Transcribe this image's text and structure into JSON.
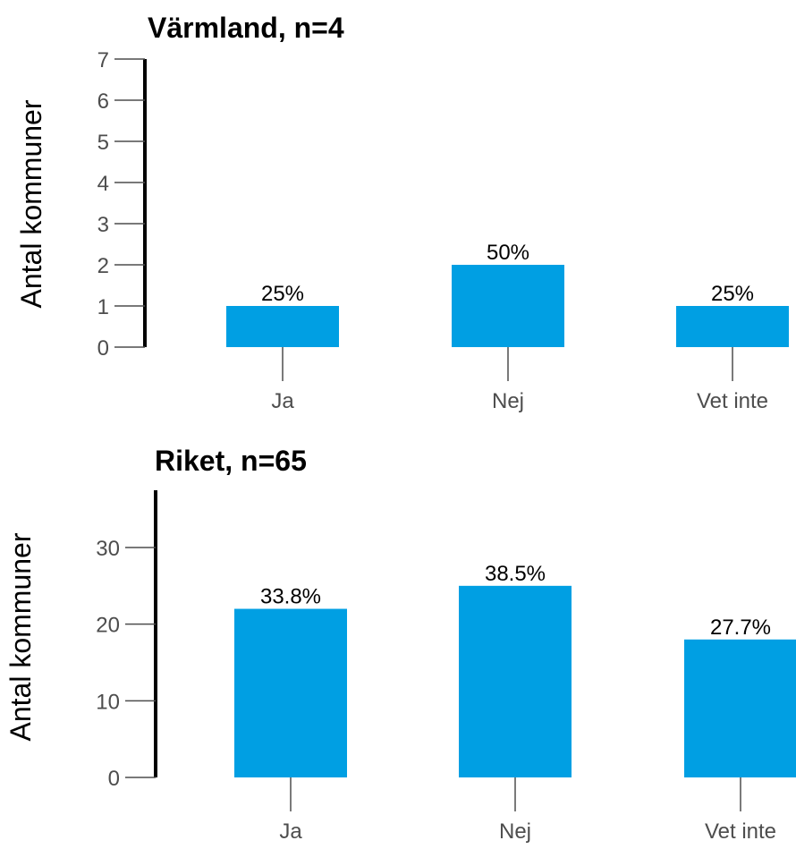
{
  "chart_data": [
    {
      "type": "bar",
      "title": "Värmland, n=4",
      "xlabel": "",
      "ylabel": "Antal kommuner",
      "categories": [
        "Ja",
        "Nej",
        "Vet inte"
      ],
      "values": [
        1,
        2,
        1
      ],
      "data_labels": [
        "25%",
        "50%",
        "25%"
      ],
      "ylim": [
        0,
        7
      ],
      "yticks": [
        0,
        1,
        2,
        3,
        4,
        5,
        6,
        7
      ],
      "grid": false,
      "bar_color": "#009fe3"
    },
    {
      "type": "bar",
      "title": "Riket, n=65",
      "xlabel": "",
      "ylabel": "Antal kommuner",
      "categories": [
        "Ja",
        "Nej",
        "Vet inte"
      ],
      "values": [
        22,
        25,
        18
      ],
      "data_labels": [
        "33.8%",
        "38.5%",
        "27.7%"
      ],
      "ylim": [
        0,
        37
      ],
      "yticks": [
        0,
        10,
        20,
        30
      ],
      "grid": false,
      "bar_color": "#009fe3"
    }
  ]
}
